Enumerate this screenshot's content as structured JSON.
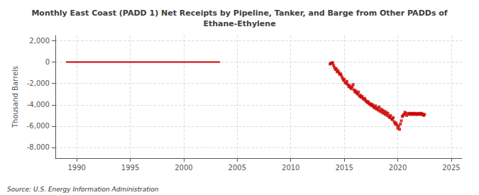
{
  "chart_data": {
    "type": "scatter",
    "title": "Monthly East Coast (PADD 1) Net Receipts by Pipeline, Tanker, and Barge from Other PADDs of\nEthane-Ethylene",
    "ylabel": "Thousand Barrels",
    "source": "Source: U.S. Energy Information Administration",
    "xlim": [
      1988.0,
      2026.0
    ],
    "ylim": [
      -9000,
      2500
    ],
    "xticks": [
      1990,
      1995,
      2000,
      2005,
      2010,
      2015,
      2020,
      2025
    ],
    "yticks": [
      {
        "value": -8000,
        "label": "-8,000"
      },
      {
        "value": -6000,
        "label": "-6,000"
      },
      {
        "value": -4000,
        "label": "-4,000"
      },
      {
        "value": -2000,
        "label": "-2,000"
      },
      0,
      {
        "value": 2000,
        "label": "2,000"
      }
    ],
    "grid": true,
    "series": [
      {
        "type": "line",
        "color": "#cc0000",
        "line_style": "solid",
        "x": [
          1989.0,
          2003.4
        ],
        "values": [
          0,
          0
        ]
      },
      {
        "type": "scatter",
        "color": "#cc0000",
        "marker": "square",
        "x": [
          2013.67,
          2013.75,
          2013.83,
          2013.92,
          2014.0,
          2014.08,
          2014.17,
          2014.25,
          2014.33,
          2014.42,
          2014.5,
          2014.58,
          2014.67,
          2014.75,
          2014.83,
          2014.92,
          2015.0,
          2015.08,
          2015.17,
          2015.25,
          2015.33,
          2015.42,
          2015.5,
          2015.58,
          2015.67,
          2015.75,
          2015.83,
          2015.92,
          2016.0,
          2016.08,
          2016.17,
          2016.25,
          2016.33,
          2016.42,
          2016.5,
          2016.58,
          2016.67,
          2016.75,
          2016.83,
          2016.92,
          2017.0,
          2017.08,
          2017.17,
          2017.25,
          2017.33,
          2017.42,
          2017.5,
          2017.58,
          2017.67,
          2017.75,
          2017.83,
          2017.92,
          2018.0,
          2018.08,
          2018.17,
          2018.25,
          2018.33,
          2018.42,
          2018.5,
          2018.58,
          2018.67,
          2018.75,
          2018.83,
          2018.92,
          2019.0,
          2019.08,
          2019.17,
          2019.25,
          2019.33,
          2019.42,
          2019.5,
          2019.58,
          2019.67,
          2019.75,
          2019.83,
          2019.92,
          2020.0,
          2020.08,
          2020.17,
          2020.25,
          2020.33,
          2020.42,
          2020.5,
          2020.58,
          2020.67,
          2020.75,
          2020.83,
          2021.0,
          2021.08,
          2021.17,
          2021.25,
          2021.33,
          2021.42,
          2021.5,
          2021.58,
          2021.67,
          2021.75,
          2021.83,
          2021.92,
          2022.0,
          2022.08,
          2022.17,
          2022.25,
          2022.33,
          2022.42,
          2022.5
        ],
        "values": [
          -180,
          -120,
          -80,
          -50,
          -300,
          -500,
          -700,
          -600,
          -900,
          -800,
          -1000,
          -1150,
          -1100,
          -1300,
          -1500,
          -1700,
          -1600,
          -1900,
          -2000,
          -1800,
          -2100,
          -2300,
          -2200,
          -2400,
          -2500,
          -2300,
          -2100,
          -2600,
          -2800,
          -2700,
          -2900,
          -3000,
          -2800,
          -3200,
          -3100,
          -3300,
          -3200,
          -3400,
          -3500,
          -3400,
          -3600,
          -3700,
          -3800,
          -3700,
          -3900,
          -4000,
          -3900,
          -4100,
          -4000,
          -4200,
          -4300,
          -4100,
          -4400,
          -4300,
          -4500,
          -4200,
          -4600,
          -4400,
          -4700,
          -4500,
          -4800,
          -4600,
          -4900,
          -4700,
          -5000,
          -4800,
          -5100,
          -5200,
          -5000,
          -5300,
          -5400,
          -5200,
          -5600,
          -5800,
          -5700,
          -5900,
          -6200,
          -6000,
          -6300,
          -5800,
          -5500,
          -5100,
          -5000,
          -4900,
          -4700,
          -4800,
          -5000,
          -4800,
          -4900,
          -4800,
          -4900,
          -4800,
          -4900,
          -4800,
          -4900,
          -4800,
          -4900,
          -4900,
          -4800,
          -4900,
          -4800,
          -4900,
          -4800,
          -4900,
          -5000,
          -4900
        ]
      }
    ]
  }
}
